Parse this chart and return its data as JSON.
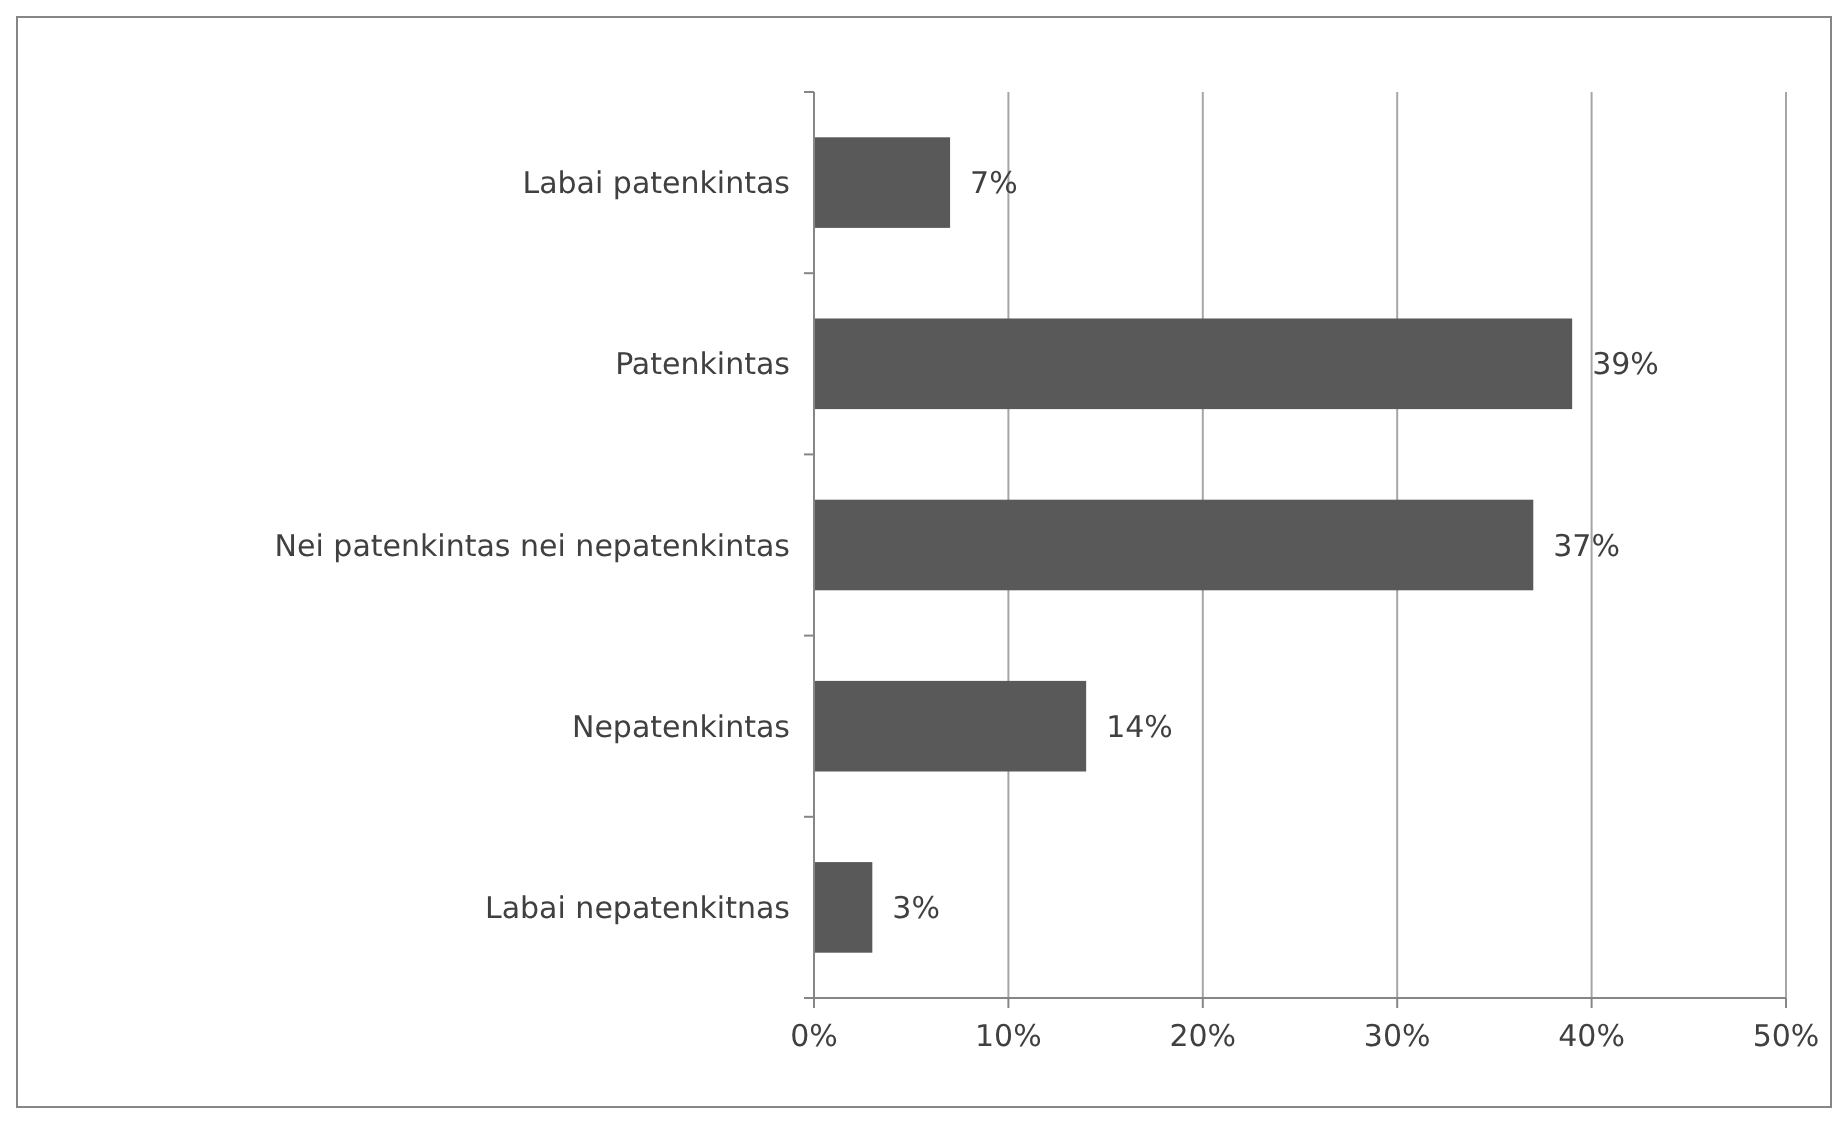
{
  "chart_data": {
    "type": "bar",
    "orientation": "horizontal",
    "categories": [
      "Labai patenkintas",
      "Patenkintas",
      "Nei patenkintas nei nepatenkintas",
      "Nepatenkintas",
      "Labai nepatenkitnas"
    ],
    "values": [
      7,
      39,
      37,
      14,
      3
    ],
    "value_labels": [
      "7%",
      "39%",
      "37%",
      "14%",
      "3%"
    ],
    "color": "#595959",
    "xlim": [
      0,
      50
    ],
    "xticks": [
      {
        "value": 0,
        "label": "0%"
      },
      {
        "value": 10,
        "label": "10%"
      },
      {
        "value": 20,
        "label": "20%"
      },
      {
        "value": 30,
        "label": "30%"
      },
      {
        "value": 40,
        "label": "40%"
      },
      {
        "value": 50,
        "label": "50%"
      }
    ],
    "grid": "x"
  }
}
